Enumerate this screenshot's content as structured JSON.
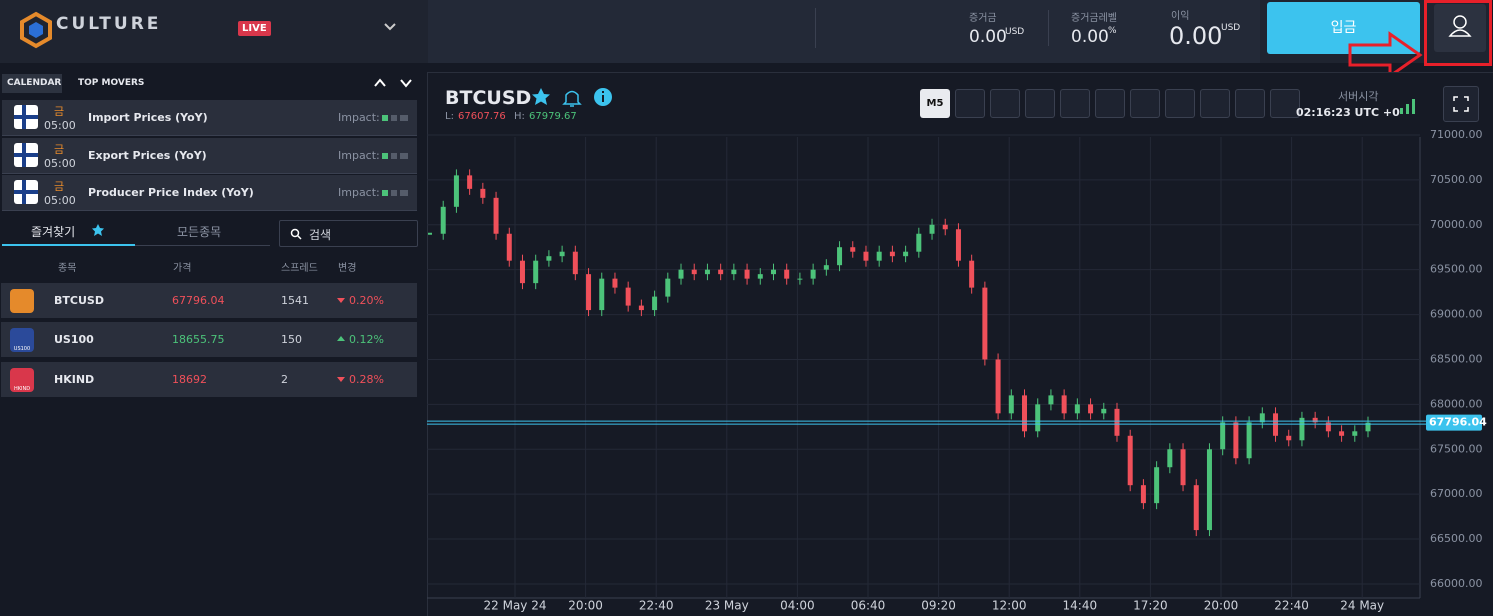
{
  "header": {
    "logo": "CULTURE",
    "live_badge": "LIVE",
    "stats": [
      {
        "label": "증거금",
        "value": "0.00",
        "unit": "USD"
      },
      {
        "label": "증거금레벨",
        "value": "0.00",
        "unit": "%"
      },
      {
        "label": "이익",
        "value": "0.00",
        "unit": "USD"
      }
    ],
    "deposit_button": "입금"
  },
  "calendar": {
    "tabs": [
      "CALENDAR",
      "TOP MOVERS"
    ],
    "events": [
      {
        "day": "금",
        "time": "05:00",
        "title": "Import Prices (YoY)",
        "impact_label": "Impact:"
      },
      {
        "day": "금",
        "time": "05:00",
        "title": "Export Prices (YoY)",
        "impact_label": "Impact:"
      },
      {
        "day": "금",
        "time": "05:00",
        "title": "Producer Price Index (YoY)",
        "impact_label": "Impact:"
      }
    ]
  },
  "watchlist": {
    "tabs": [
      "즐겨찾기",
      "모든종목"
    ],
    "search_placeholder": "검색",
    "columns": [
      "종목",
      "가격",
      "스프레드",
      "변경"
    ],
    "rows": [
      [
        "BTCUSD",
        "67796.04",
        "1541",
        "0.20%"
      ],
      [
        "US100",
        "18655.75",
        "150",
        "0.12%"
      ],
      [
        "HKIND",
        "18692",
        "2",
        "0.28%"
      ]
    ],
    "icon_labels": [
      "US100",
      "HKIND"
    ]
  },
  "chart": {
    "symbol": "BTCUSD",
    "low_label": "L:",
    "low": "67607.76",
    "high_label": "H:",
    "high": "67979.67",
    "timeframe": "M5",
    "server_time_label": "서버시각",
    "server_time": "02:16:23 UTC +0",
    "ylim": [
      65710,
      71111
    ],
    "yticks": [
      {
        "value": 66000,
        "label": "66000.00"
      },
      {
        "value": 66500,
        "label": "66500.00"
      },
      {
        "value": 67000,
        "label": "67000.00"
      },
      {
        "value": 67500,
        "label": "67500.00"
      },
      {
        "value": 68000,
        "label": "68000.00"
      },
      {
        "value": 68500,
        "label": "68500.00"
      },
      {
        "value": 69000,
        "label": "69000.00"
      },
      {
        "value": 69500,
        "label": "69500.00"
      },
      {
        "value": 70000,
        "label": "70000.00"
      },
      {
        "value": 70500,
        "label": "70500.00"
      },
      {
        "value": 71000,
        "label": "71000.00"
      }
    ],
    "xticks": [
      "22 May 24",
      "20:00",
      "22:40",
      "23 May",
      "04:00",
      "06:40",
      "09:20",
      "12:00",
      "14:40",
      "17:20",
      "20:00",
      "22:40",
      "24 May"
    ],
    "prices": [
      69900,
      70200,
      70550,
      70400,
      70300,
      69900,
      69600,
      69350,
      69600,
      69650,
      69700,
      69450,
      69050,
      69400,
      69300,
      69100,
      69050,
      69200,
      69400,
      69500,
      69450,
      69500,
      69450,
      69500,
      69400,
      69450,
      69500,
      69400,
      69400,
      69500,
      69550,
      69750,
      69700,
      69600,
      69700,
      69650,
      69700,
      69900,
      70000,
      69950,
      69600,
      69300,
      68500,
      67900,
      68100,
      67700,
      68000,
      68100,
      67900,
      68000,
      67900,
      67950,
      67650,
      67100,
      66900,
      67300,
      67500,
      67100,
      66600,
      67500,
      67800,
      67400,
      67800,
      67900,
      67650,
      67600,
      67850,
      67800,
      67700,
      67650,
      67700,
      67796
    ],
    "current_price": {
      "value": 67796.04,
      "label": "67796.04"
    }
  }
}
